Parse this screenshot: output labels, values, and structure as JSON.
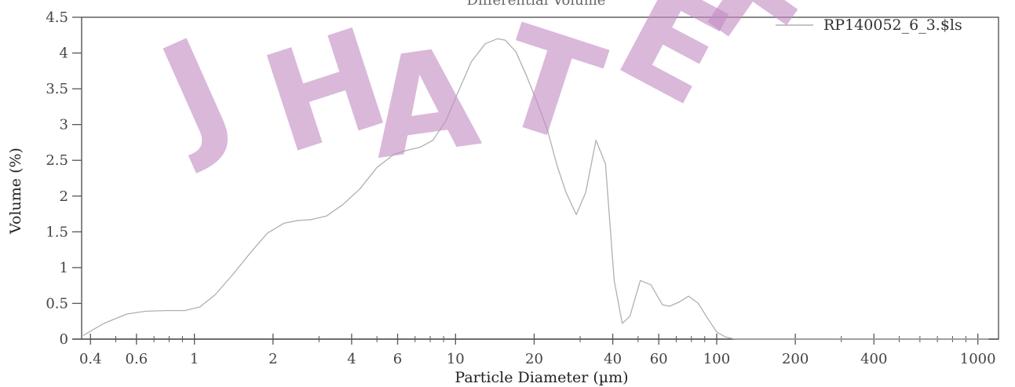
{
  "chart_data": {
    "type": "line",
    "title": "Differential Volume",
    "xlabel": "Particle Diameter (µm)",
    "ylabel": "Volume (%)",
    "x_scale": "log",
    "xlim": [
      0.37,
      1200
    ],
    "ylim": [
      0,
      4.5
    ],
    "x_ticks": [
      {
        "v": 0.4,
        "label": "0.4"
      },
      {
        "v": 0.6,
        "label": "0.6"
      },
      {
        "v": 1,
        "label": "1"
      },
      {
        "v": 2,
        "label": "2"
      },
      {
        "v": 4,
        "label": "4"
      },
      {
        "v": 6,
        "label": "6"
      },
      {
        "v": 10,
        "label": "10"
      },
      {
        "v": 20,
        "label": "20"
      },
      {
        "v": 40,
        "label": "40"
      },
      {
        "v": 60,
        "label": "60"
      },
      {
        "v": 100,
        "label": "100"
      },
      {
        "v": 200,
        "label": "200"
      },
      {
        "v": 400,
        "label": "400"
      },
      {
        "v": 1000,
        "label": "1000"
      }
    ],
    "y_ticks": [
      {
        "v": 0,
        "label": "0"
      },
      {
        "v": 0.5,
        "label": "0.5"
      },
      {
        "v": 1,
        "label": "1"
      },
      {
        "v": 1.5,
        "label": "1.5"
      },
      {
        "v": 2,
        "label": "2"
      },
      {
        "v": 2.5,
        "label": "2.5"
      },
      {
        "v": 3,
        "label": "3"
      },
      {
        "v": 3.5,
        "label": "3.5"
      },
      {
        "v": 4,
        "label": "4"
      },
      {
        "v": 4.5,
        "label": "4.5"
      }
    ],
    "grid": false,
    "legend_position": "top-right",
    "series": [
      {
        "name": "RP140052_6_3.$ls",
        "color": "#b0b0b0",
        "x": [
          0.375,
          0.45,
          0.55,
          0.65,
          0.78,
          0.92,
          1.05,
          1.2,
          1.4,
          1.65,
          1.9,
          2.2,
          2.5,
          2.8,
          3.2,
          3.7,
          4.3,
          5.0,
          5.8,
          6.5,
          7.3,
          8.2,
          9.2,
          10.3,
          11.5,
          13.0,
          14.5,
          15.5,
          17.0,
          18.7,
          20.5,
          22.5,
          24.5,
          26.5,
          29.0,
          31.5,
          34.5,
          37.5,
          40.5,
          43.5,
          46.5,
          51.0,
          56.0,
          62.0,
          66.0,
          72.0,
          78.0,
          85.0,
          92.0,
          100.0,
          108.0,
          118.0,
          130.0,
          145.0,
          175.0,
          250.0,
          400.0,
          700.0,
          1100.0
        ],
        "y": [
          0.05,
          0.22,
          0.35,
          0.39,
          0.4,
          0.4,
          0.45,
          0.62,
          0.9,
          1.22,
          1.48,
          1.62,
          1.66,
          1.67,
          1.72,
          1.88,
          2.1,
          2.4,
          2.58,
          2.64,
          2.68,
          2.78,
          3.06,
          3.48,
          3.88,
          4.13,
          4.2,
          4.18,
          4.02,
          3.68,
          3.32,
          2.92,
          2.42,
          2.05,
          1.74,
          2.05,
          2.78,
          2.45,
          0.82,
          0.22,
          0.32,
          0.82,
          0.76,
          0.48,
          0.46,
          0.52,
          0.6,
          0.5,
          0.3,
          0.1,
          0.03,
          0.0,
          0.0,
          0.0,
          0.0,
          0.0,
          0.0,
          0.0,
          0.0
        ]
      }
    ]
  },
  "watermark": {
    "text": "JHA TEF",
    "color": "#c38cc4"
  }
}
